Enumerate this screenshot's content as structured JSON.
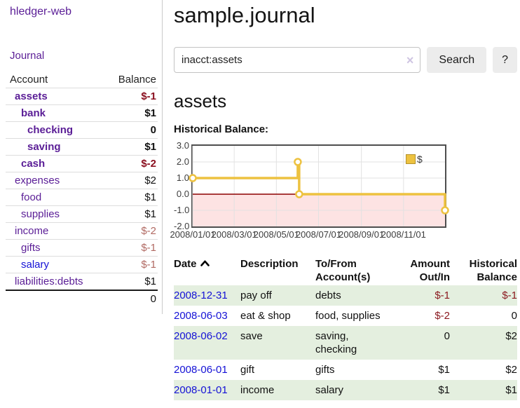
{
  "app": {
    "title": "hledger-web"
  },
  "sidebar": {
    "journal_link": "Journal",
    "accounts": {
      "headers": {
        "account": "Account",
        "balance": "Balance"
      },
      "rows": [
        {
          "name": "assets",
          "level": 0,
          "in_query": true,
          "balance": "$-1"
        },
        {
          "name": "bank",
          "level": 1,
          "in_query": true,
          "balance": "$1"
        },
        {
          "name": "checking",
          "level": 2,
          "in_query": true,
          "balance": "0"
        },
        {
          "name": "saving",
          "level": 2,
          "in_query": true,
          "balance": "$1"
        },
        {
          "name": "cash",
          "level": 1,
          "in_query": true,
          "balance": "$-2"
        },
        {
          "name": "expenses",
          "level": 0,
          "in_query": false,
          "balance": "$2"
        },
        {
          "name": "food",
          "level": 1,
          "in_query": false,
          "balance": "$1"
        },
        {
          "name": "supplies",
          "level": 1,
          "in_query": false,
          "balance": "$1"
        },
        {
          "name": "income",
          "level": 0,
          "in_query": false,
          "balance": "$-2"
        },
        {
          "name": "gifts",
          "level": 1,
          "in_query": false,
          "balance": "$-1"
        },
        {
          "name": "salary",
          "level": 1,
          "in_query": false,
          "balance": "$-1",
          "unvisited": true
        },
        {
          "name": "liabilities:debts",
          "level": 0,
          "in_query": false,
          "balance": "$1"
        }
      ],
      "total": "0"
    }
  },
  "header": {
    "title": "sample.journal"
  },
  "search": {
    "query": "inacct:assets",
    "clear_icon": "×",
    "button_label": "Search",
    "help_label": "?"
  },
  "account_page": {
    "title": "assets",
    "chart_label": "Historical Balance:"
  },
  "chart_data": {
    "type": "line",
    "step": true,
    "title": "Historical Balance",
    "ylim": [
      -2,
      3
    ],
    "x_range": [
      "2008-01-01",
      "2008-12-31"
    ],
    "grid": true,
    "legend_position": "top-right",
    "negative_region_color": "#fde3e3",
    "zero_line_color": "#8b0000",
    "series": [
      {
        "name": "$",
        "color": "#edc240",
        "points": [
          [
            "2008-01-01",
            1
          ],
          [
            "2008-06-01",
            2
          ],
          [
            "2008-06-03",
            0
          ],
          [
            "2008-12-31",
            -1
          ]
        ]
      }
    ],
    "x_ticks": [
      {
        "date": "2008-01-01",
        "label": "2008/01/01"
      },
      {
        "date": "2008-03-01",
        "label": "2008/03/01"
      },
      {
        "date": "2008-05-01",
        "label": "2008/05/01"
      },
      {
        "date": "2008-07-01",
        "label": "2008/07/01"
      },
      {
        "date": "2008-09-01",
        "label": "2008/09/01"
      },
      {
        "date": "2008-11-01",
        "label": "2008/11/01"
      }
    ],
    "y_ticks": [
      {
        "value": 3,
        "label": "3.0"
      },
      {
        "value": 2,
        "label": "2.0"
      },
      {
        "value": 1,
        "label": "1.0"
      },
      {
        "value": 0,
        "label": "0.0"
      },
      {
        "value": -1,
        "label": "-1.0"
      },
      {
        "value": -2,
        "label": "-2.0"
      }
    ]
  },
  "register": {
    "headers": {
      "date": "Date",
      "description": "Description",
      "accounts": "To/From Account(s)",
      "amount": "Amount Out/In",
      "balance": "Historical Balance"
    },
    "rows": [
      {
        "date": "2008-12-31",
        "description": "pay off",
        "accounts_lines": [
          "debts"
        ],
        "amount": "$-1",
        "balance": "$-1"
      },
      {
        "date": "2008-06-03",
        "description": "eat & shop",
        "accounts_lines": [
          "food, supplies"
        ],
        "amount": "$-2",
        "balance": "0"
      },
      {
        "date": "2008-06-02",
        "description": "save",
        "accounts_lines": [
          "saving,",
          "checking"
        ],
        "amount": "0",
        "balance": "$2"
      },
      {
        "date": "2008-06-01",
        "description": "gift",
        "accounts_lines": [
          "gifts"
        ],
        "amount": "$1",
        "balance": "$2"
      },
      {
        "date": "2008-01-01",
        "description": "income",
        "accounts_lines": [
          "salary"
        ],
        "amount": "$1",
        "balance": "$1"
      }
    ]
  }
}
